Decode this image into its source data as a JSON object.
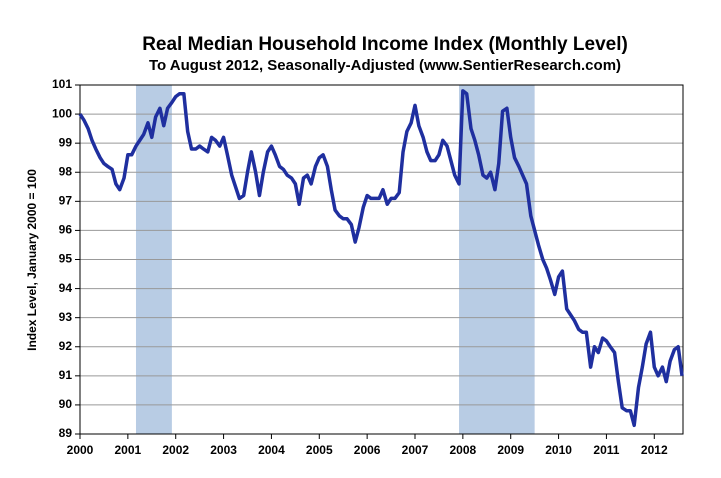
{
  "chart_data": {
    "type": "line",
    "title": "Real Median Household Income Index (Monthly Level)",
    "subtitle": "To August 2012, Seasonally-Adjusted (www.SentierResearch.com)",
    "y_label": "Index Level, January 2000 = 100",
    "color": "#1f2f9f",
    "shade_color": "#b8cce4",
    "grid": true,
    "xlim": [
      2000,
      2012.6
    ],
    "xticks": [
      2000,
      2001,
      2002,
      2003,
      2004,
      2005,
      2006,
      2007,
      2008,
      2009,
      2010,
      2011,
      2012
    ],
    "ylim": [
      89,
      101
    ],
    "yticks": [
      89,
      90,
      91,
      92,
      93,
      94,
      95,
      96,
      97,
      98,
      99,
      100,
      101
    ],
    "shaded_regions": [
      [
        2001.17,
        2001.92
      ],
      [
        2007.92,
        2009.5
      ]
    ],
    "x": [
      2000,
      2000.08,
      2000.17,
      2000.25,
      2000.33,
      2000.42,
      2000.5,
      2000.58,
      2000.67,
      2000.75,
      2000.83,
      2000.92,
      2001,
      2001.08,
      2001.17,
      2001.25,
      2001.33,
      2001.42,
      2001.5,
      2001.58,
      2001.67,
      2001.75,
      2001.83,
      2001.92,
      2002,
      2002.08,
      2002.17,
      2002.25,
      2002.33,
      2002.42,
      2002.5,
      2002.58,
      2002.67,
      2002.75,
      2002.83,
      2002.92,
      2003,
      2003.08,
      2003.17,
      2003.25,
      2003.33,
      2003.42,
      2003.5,
      2003.58,
      2003.67,
      2003.75,
      2003.83,
      2003.92,
      2004,
      2004.08,
      2004.17,
      2004.25,
      2004.33,
      2004.42,
      2004.5,
      2004.58,
      2004.67,
      2004.75,
      2004.83,
      2004.92,
      2005,
      2005.08,
      2005.17,
      2005.25,
      2005.33,
      2005.42,
      2005.5,
      2005.58,
      2005.67,
      2005.75,
      2005.83,
      2005.92,
      2006,
      2006.08,
      2006.17,
      2006.25,
      2006.33,
      2006.42,
      2006.5,
      2006.58,
      2006.67,
      2006.75,
      2006.83,
      2006.92,
      2007,
      2007.08,
      2007.17,
      2007.25,
      2007.33,
      2007.42,
      2007.5,
      2007.58,
      2007.67,
      2007.75,
      2007.83,
      2007.92,
      2008,
      2008.08,
      2008.17,
      2008.25,
      2008.33,
      2008.42,
      2008.5,
      2008.58,
      2008.67,
      2008.75,
      2008.83,
      2008.92,
      2009,
      2009.08,
      2009.17,
      2009.25,
      2009.33,
      2009.42,
      2009.5,
      2009.58,
      2009.67,
      2009.75,
      2009.83,
      2009.92,
      2010,
      2010.08,
      2010.17,
      2010.25,
      2010.33,
      2010.42,
      2010.5,
      2010.58,
      2010.67,
      2010.75,
      2010.83,
      2010.92,
      2011,
      2011.08,
      2011.17,
      2011.25,
      2011.33,
      2011.42,
      2011.5,
      2011.58,
      2011.67,
      2011.75,
      2011.83,
      2011.92,
      2012,
      2012.08,
      2012.17,
      2012.25,
      2012.33,
      2012.42,
      2012.5,
      2012.58
    ],
    "values": [
      100.0,
      99.8,
      99.5,
      99.1,
      98.8,
      98.5,
      98.3,
      98.2,
      98.1,
      97.6,
      97.4,
      97.8,
      98.6,
      98.6,
      98.9,
      99.1,
      99.3,
      99.7,
      99.2,
      99.9,
      100.2,
      99.6,
      100.2,
      100.4,
      100.6,
      100.7,
      100.7,
      99.4,
      98.8,
      98.8,
      98.9,
      98.8,
      98.7,
      99.2,
      99.1,
      98.9,
      99.2,
      98.6,
      97.9,
      97.5,
      97.1,
      97.2,
      98.0,
      98.7,
      98.0,
      97.2,
      98.0,
      98.7,
      98.9,
      98.6,
      98.2,
      98.1,
      97.9,
      97.8,
      97.6,
      96.9,
      97.8,
      97.9,
      97.6,
      98.2,
      98.5,
      98.6,
      98.2,
      97.4,
      96.7,
      96.5,
      96.4,
      96.4,
      96.2,
      95.6,
      96.1,
      96.8,
      97.2,
      97.1,
      97.1,
      97.1,
      97.4,
      96.9,
      97.1,
      97.1,
      97.3,
      98.7,
      99.4,
      99.7,
      100.3,
      99.6,
      99.2,
      98.7,
      98.4,
      98.4,
      98.6,
      99.1,
      98.9,
      98.4,
      97.9,
      97.6,
      100.8,
      100.7,
      99.5,
      99.1,
      98.6,
      97.9,
      97.8,
      98.0,
      97.4,
      98.3,
      100.1,
      100.2,
      99.2,
      98.5,
      98.2,
      97.9,
      97.6,
      96.5,
      96.0,
      95.5,
      95.0,
      94.7,
      94.3,
      93.8,
      94.4,
      94.6,
      93.3,
      93.1,
      92.9,
      92.6,
      92.5,
      92.5,
      91.3,
      92.0,
      91.8,
      92.3,
      92.2,
      92.0,
      91.8,
      90.8,
      89.9,
      89.8,
      89.8,
      89.3,
      90.6,
      91.3,
      92.1,
      92.5,
      91.3,
      91.0,
      91.3,
      90.8,
      91.5,
      91.9,
      92.0,
      91.0
    ]
  }
}
